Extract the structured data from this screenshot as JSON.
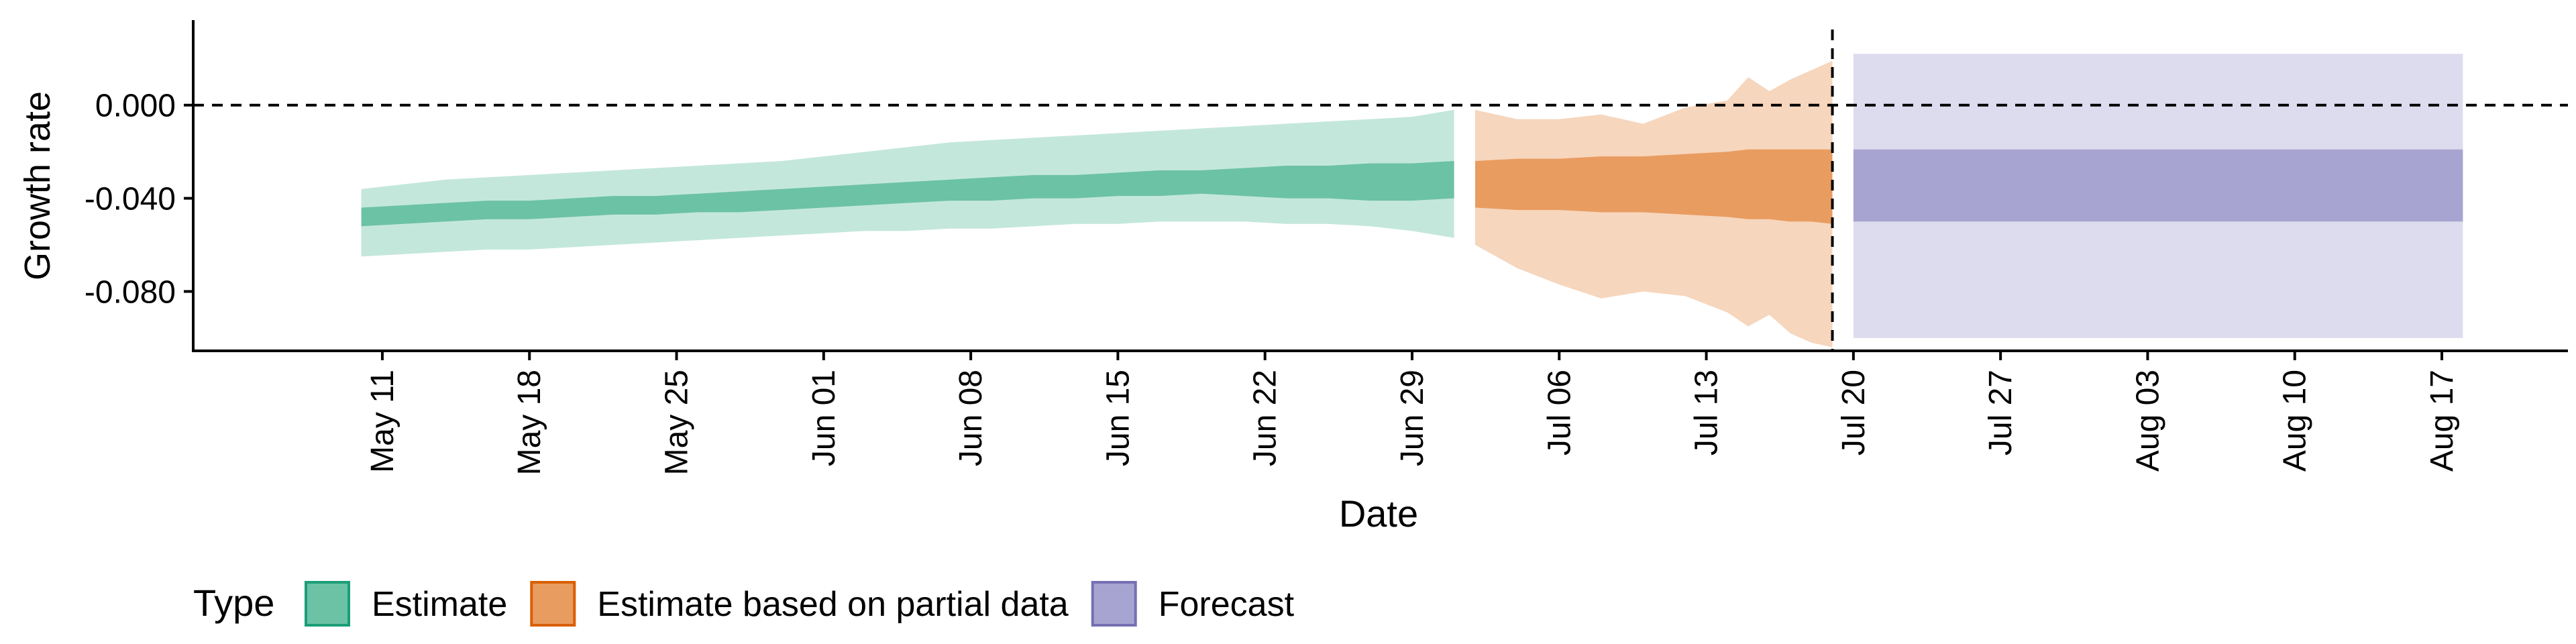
{
  "chart_data": {
    "type": "area",
    "title": "",
    "xlabel": "Date",
    "ylabel": "Growth rate",
    "ylim": [
      -0.1055,
      0.0365
    ],
    "xlim": [
      "2020-05-02",
      "2020-08-23"
    ],
    "y_ticks": [
      0.0,
      -0.04,
      -0.08
    ],
    "y_tick_labels": [
      "0.000",
      "-0.040",
      "-0.080"
    ],
    "x_ticks": [
      "2020-05-11",
      "2020-05-18",
      "2020-05-25",
      "2020-06-01",
      "2020-06-08",
      "2020-06-15",
      "2020-06-22",
      "2020-06-29",
      "2020-07-06",
      "2020-07-13",
      "2020-07-20",
      "2020-07-27",
      "2020-08-03",
      "2020-08-10",
      "2020-08-17"
    ],
    "x_tick_labels": [
      "May 11",
      "May 18",
      "May 25",
      "Jun 01",
      "Jun 08",
      "Jun 15",
      "Jun 22",
      "Jun 29",
      "Jul 06",
      "Jul 13",
      "Jul 20",
      "Jul 27",
      "Aug 03",
      "Aug 10",
      "Aug 17"
    ],
    "grid": false,
    "reference_lines": [
      {
        "axis": "y",
        "value": 0,
        "style": "dashed"
      },
      {
        "axis": "x",
        "value": "2020-07-19",
        "style": "dashed"
      }
    ],
    "legend": {
      "title": "Type",
      "position": "bottom-left",
      "entries": [
        "Estimate",
        "Estimate based on partial data",
        "Forecast"
      ]
    },
    "colors": {
      "Estimate": {
        "inner": "#6cc2a5",
        "outer": "#c4e7dc",
        "border": "#1b9e77"
      },
      "Estimate based on partial data": {
        "inner": "#e99c60",
        "outer": "#f6d6bd",
        "border": "#d95f02"
      },
      "Forecast": {
        "inner": "#a7a4d1",
        "outer": "#dddcee",
        "border": "#7570b3"
      }
    },
    "series": [
      {
        "name": "Estimate",
        "x": [
          "2020-05-10",
          "2020-05-12",
          "2020-05-14",
          "2020-05-16",
          "2020-05-18",
          "2020-05-20",
          "2020-05-22",
          "2020-05-24",
          "2020-05-26",
          "2020-05-28",
          "2020-05-30",
          "2020-06-01",
          "2020-06-03",
          "2020-06-05",
          "2020-06-07",
          "2020-06-09",
          "2020-06-11",
          "2020-06-13",
          "2020-06-15",
          "2020-06-17",
          "2020-06-19",
          "2020-06-21",
          "2020-06-23",
          "2020-06-25",
          "2020-06-27",
          "2020-06-29",
          "2020-07-01"
        ],
        "inner_lower": [
          -0.052,
          -0.051,
          -0.05,
          -0.049,
          -0.049,
          -0.048,
          -0.047,
          -0.047,
          -0.046,
          -0.046,
          -0.045,
          -0.044,
          -0.043,
          -0.042,
          -0.041,
          -0.041,
          -0.04,
          -0.04,
          -0.039,
          -0.039,
          -0.038,
          -0.039,
          -0.04,
          -0.04,
          -0.041,
          -0.041,
          -0.04
        ],
        "inner_upper": [
          -0.044,
          -0.043,
          -0.042,
          -0.041,
          -0.041,
          -0.04,
          -0.039,
          -0.039,
          -0.038,
          -0.037,
          -0.036,
          -0.035,
          -0.034,
          -0.033,
          -0.032,
          -0.031,
          -0.03,
          -0.03,
          -0.029,
          -0.028,
          -0.028,
          -0.027,
          -0.026,
          -0.026,
          -0.025,
          -0.025,
          -0.024
        ],
        "outer_lower": [
          -0.065,
          -0.064,
          -0.063,
          -0.062,
          -0.062,
          -0.061,
          -0.06,
          -0.059,
          -0.058,
          -0.057,
          -0.056,
          -0.055,
          -0.054,
          -0.054,
          -0.053,
          -0.053,
          -0.052,
          -0.051,
          -0.051,
          -0.05,
          -0.05,
          -0.05,
          -0.051,
          -0.051,
          -0.052,
          -0.054,
          -0.057
        ],
        "outer_upper": [
          -0.036,
          -0.034,
          -0.032,
          -0.031,
          -0.03,
          -0.029,
          -0.028,
          -0.027,
          -0.026,
          -0.025,
          -0.024,
          -0.022,
          -0.02,
          -0.018,
          -0.016,
          -0.015,
          -0.014,
          -0.013,
          -0.012,
          -0.011,
          -0.01,
          -0.009,
          -0.008,
          -0.007,
          -0.006,
          -0.005,
          -0.002
        ]
      },
      {
        "name": "Estimate based on partial data",
        "x": [
          "2020-07-02",
          "2020-07-04",
          "2020-07-06",
          "2020-07-08",
          "2020-07-10",
          "2020-07-12",
          "2020-07-14",
          "2020-07-15",
          "2020-07-16",
          "2020-07-17",
          "2020-07-18",
          "2020-07-19"
        ],
        "inner_lower": [
          -0.044,
          -0.045,
          -0.045,
          -0.046,
          -0.046,
          -0.047,
          -0.048,
          -0.049,
          -0.049,
          -0.05,
          -0.05,
          -0.051
        ],
        "inner_upper": [
          -0.024,
          -0.023,
          -0.023,
          -0.022,
          -0.022,
          -0.021,
          -0.02,
          -0.019,
          -0.019,
          -0.019,
          -0.019,
          -0.019
        ],
        "outer_lower": [
          -0.06,
          -0.07,
          -0.077,
          -0.083,
          -0.08,
          -0.082,
          -0.089,
          -0.095,
          -0.09,
          -0.098,
          -0.102,
          -0.104
        ],
        "outer_upper": [
          -0.002,
          -0.006,
          -0.006,
          -0.004,
          -0.008,
          -0.001,
          0.002,
          0.012,
          0.006,
          0.011,
          0.015,
          0.019
        ]
      },
      {
        "name": "Forecast",
        "x": [
          "2020-07-20",
          "2020-08-18"
        ],
        "inner_lower": [
          -0.05,
          -0.05
        ],
        "inner_upper": [
          -0.019,
          -0.019
        ],
        "outer_lower": [
          -0.1,
          -0.1
        ],
        "outer_upper": [
          0.022,
          0.022
        ]
      }
    ]
  }
}
